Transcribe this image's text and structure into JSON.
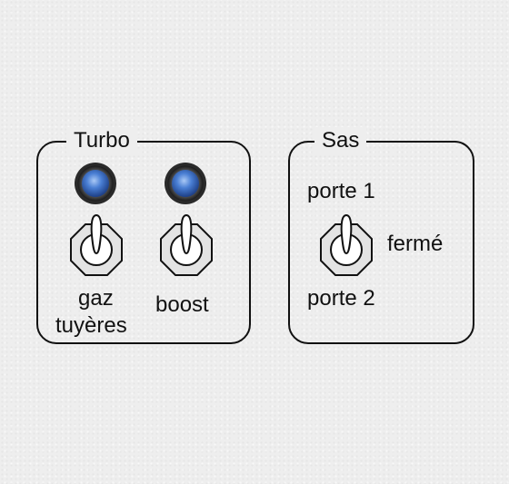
{
  "turbo": {
    "title": "Turbo",
    "switches": [
      {
        "label_line1": "gaz",
        "label_line2": "tuyères"
      },
      {
        "label": "boost"
      }
    ]
  },
  "sas": {
    "title": "Sas",
    "label_top": "porte 1",
    "label_bottom": "porte 2",
    "label_right": "fermé"
  },
  "icons": {
    "indicator": "blue-led-indicator-icon",
    "toggle": "toggle-switch-icon"
  },
  "colors": {
    "led_blue": "#4a7fd4",
    "panel_border": "#111111",
    "background": "#eeeeee"
  }
}
